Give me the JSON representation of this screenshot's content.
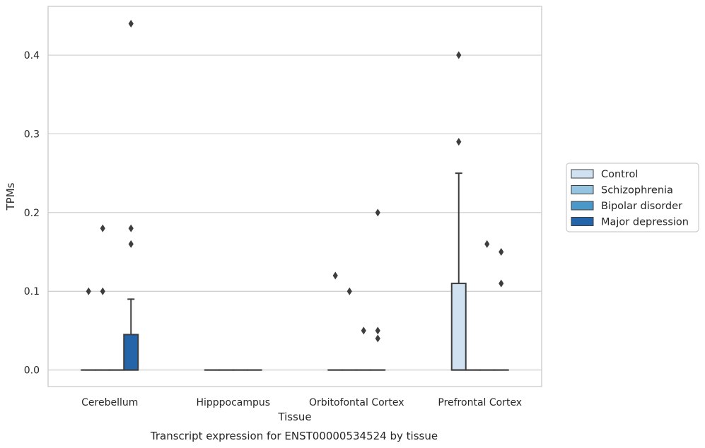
{
  "chart_data": {
    "type": "box",
    "caption": "Transcript expression for ENST00000534524 by tissue",
    "xlabel": "Tissue",
    "ylabel": "TPMs",
    "ylim": [
      -0.021,
      0.462
    ],
    "yticks": [
      0.0,
      0.1,
      0.2,
      0.3,
      0.4
    ],
    "ytick_labels": [
      "0.0",
      "0.1",
      "0.2",
      "0.3",
      "0.4"
    ],
    "categories": [
      "Cerebellum",
      "Hipppocampus",
      "Orbitofontal Cortex",
      "Prefrontal Cortex"
    ],
    "grid": "horizontal",
    "legend_position": "right",
    "series": [
      {
        "name": "Control",
        "color": "#d0e1f2",
        "boxes": [
          {
            "q1": 0,
            "median": 0,
            "q3": 0,
            "whislo": 0,
            "whishi": 0,
            "fliers": [
              0.1
            ]
          },
          {
            "q1": 0,
            "median": 0,
            "q3": 0,
            "whislo": 0,
            "whishi": 0,
            "fliers": []
          },
          {
            "q1": 0,
            "median": 0,
            "q3": 0,
            "whislo": 0,
            "whishi": 0,
            "fliers": [
              0.12
            ]
          },
          {
            "q1": 0,
            "median": 0,
            "q3": 0.11,
            "whislo": 0,
            "whishi": 0.25,
            "fliers": [
              0.29,
              0.4
            ]
          }
        ]
      },
      {
        "name": "Schizophrenia",
        "color": "#94c4df",
        "boxes": [
          {
            "q1": 0,
            "median": 0,
            "q3": 0,
            "whislo": 0,
            "whishi": 0,
            "fliers": [
              0.1,
              0.18
            ]
          },
          {
            "q1": 0,
            "median": 0,
            "q3": 0,
            "whislo": 0,
            "whishi": 0,
            "fliers": []
          },
          {
            "q1": 0,
            "median": 0,
            "q3": 0,
            "whislo": 0,
            "whishi": 0,
            "fliers": [
              0.1
            ]
          },
          {
            "q1": 0,
            "median": 0,
            "q3": 0,
            "whislo": 0,
            "whishi": 0,
            "fliers": []
          }
        ]
      },
      {
        "name": "Bipolar disorder",
        "color": "#4a98c9",
        "boxes": [
          {
            "q1": 0,
            "median": 0,
            "q3": 0,
            "whislo": 0,
            "whishi": 0,
            "fliers": []
          },
          {
            "q1": 0,
            "median": 0,
            "q3": 0,
            "whislo": 0,
            "whishi": 0,
            "fliers": []
          },
          {
            "q1": 0,
            "median": 0,
            "q3": 0,
            "whislo": 0,
            "whishi": 0,
            "fliers": [
              0.05
            ]
          },
          {
            "q1": 0,
            "median": 0,
            "q3": 0,
            "whislo": 0,
            "whishi": 0,
            "fliers": [
              0.16
            ]
          }
        ]
      },
      {
        "name": "Major depression",
        "color": "#2464a8",
        "boxes": [
          {
            "q1": 0,
            "median": 0,
            "q3": 0.045,
            "whislo": 0,
            "whishi": 0.09,
            "fliers": [
              0.16,
              0.18,
              0.44
            ]
          },
          {
            "q1": 0,
            "median": 0,
            "q3": 0,
            "whislo": 0,
            "whishi": 0,
            "fliers": []
          },
          {
            "q1": 0,
            "median": 0,
            "q3": 0,
            "whislo": 0,
            "whishi": 0,
            "fliers": [
              0.04,
              0.05,
              0.2
            ]
          },
          {
            "q1": 0,
            "median": 0,
            "q3": 0,
            "whislo": 0,
            "whishi": 0,
            "fliers": [
              0.11,
              0.15
            ]
          }
        ]
      }
    ]
  }
}
